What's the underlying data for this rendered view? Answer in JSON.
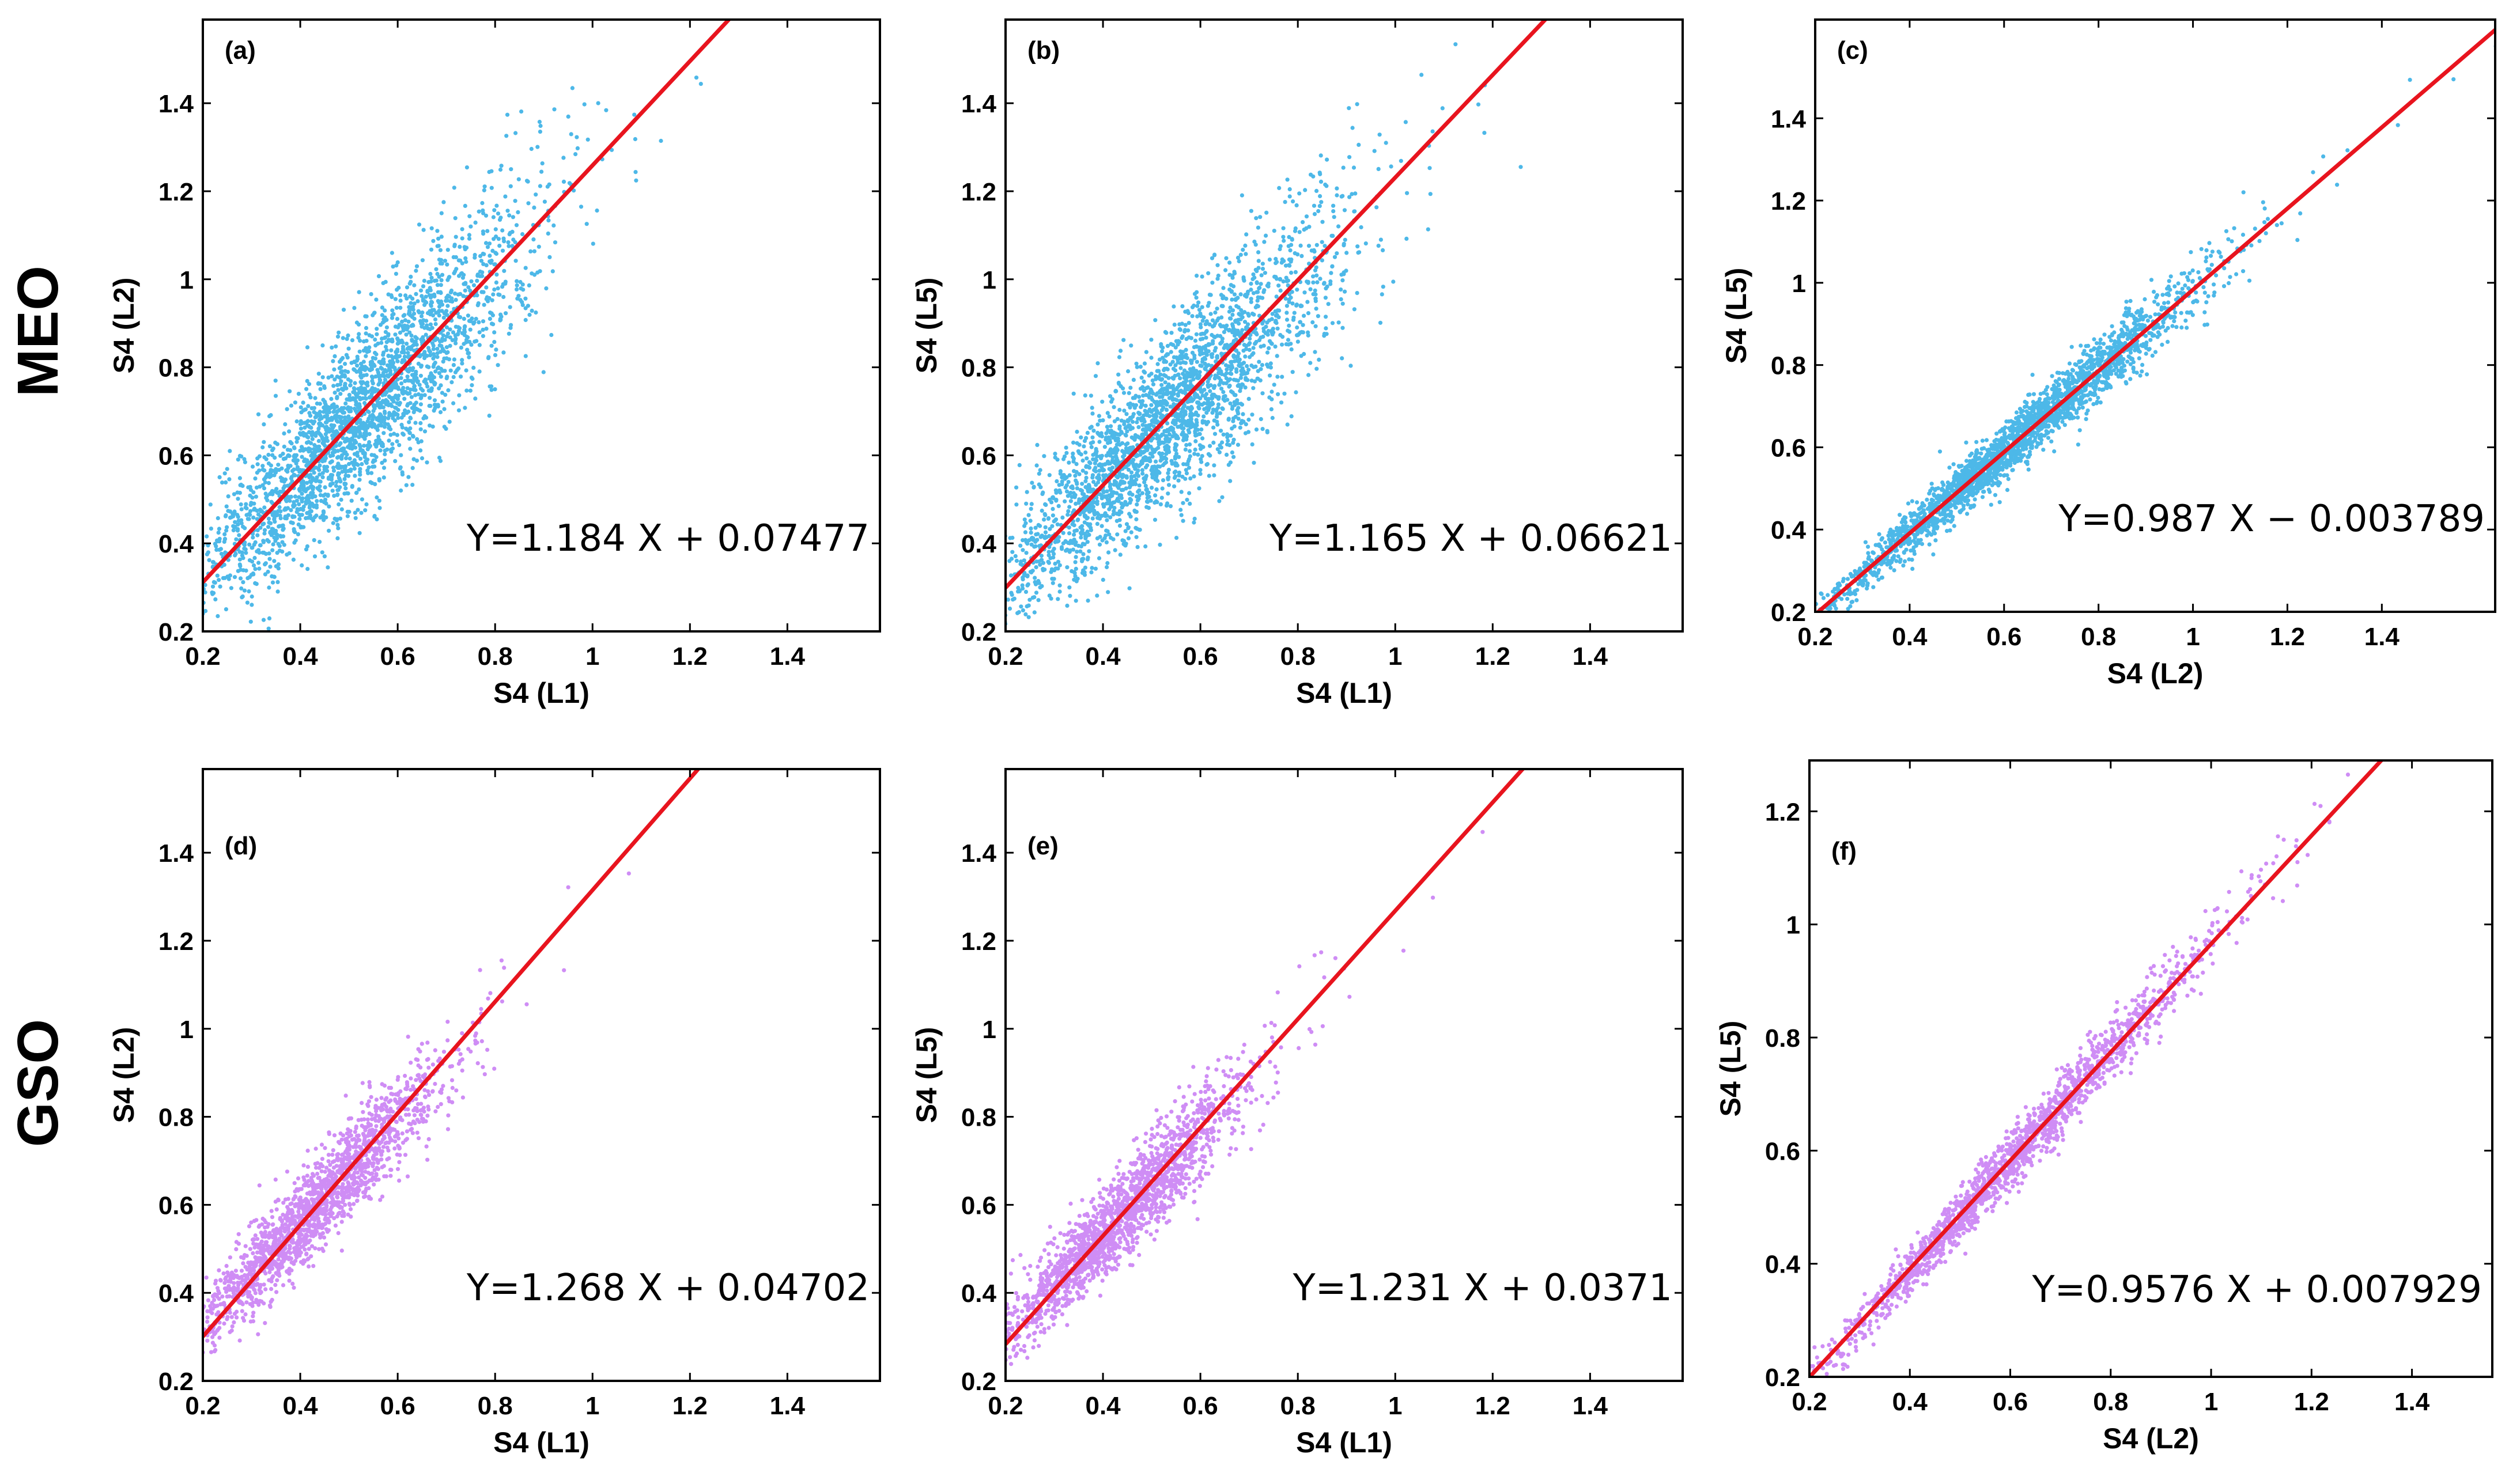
{
  "row_labels": [
    "MEO",
    "GSO"
  ],
  "colors": {
    "meo_points": "#4db8e8",
    "gso_points": "#cf8df5",
    "fit_line": "#e8141e",
    "axes": "#000000"
  },
  "chart_data": [
    {
      "panel": "(a)",
      "type": "scatter",
      "row": "MEO",
      "xlabel": "S4 (L1)",
      "ylabel": "S4 (L2)",
      "xlim": [
        0.2,
        1.59
      ],
      "ylim": [
        0.2,
        1.59
      ],
      "xticks": [
        "0.2",
        "0.4",
        "0.6",
        "0.8",
        "1",
        "1.2",
        "1.4"
      ],
      "yticks": [
        "0.2",
        "0.4",
        "0.6",
        "0.8",
        "1",
        "1.2",
        "1.4"
      ],
      "fit": {
        "slope": 1.184,
        "intercept": 0.07477
      },
      "equation": "Y=1.184 X + 0.07477",
      "point_color": "#4db8e8",
      "point_count": 2600,
      "spread": 0.11,
      "x_mean": 0.52,
      "x_sd": 0.17
    },
    {
      "panel": "(b)",
      "type": "scatter",
      "row": "MEO",
      "xlabel": "S4 (L1)",
      "ylabel": "S4 (L5)",
      "xlim": [
        0.2,
        1.59
      ],
      "ylim": [
        0.2,
        1.59
      ],
      "xticks": [
        "0.2",
        "0.4",
        "0.6",
        "0.8",
        "1",
        "1.2",
        "1.4"
      ],
      "yticks": [
        "0.2",
        "0.4",
        "0.6",
        "0.8",
        "1",
        "1.2",
        "1.4"
      ],
      "fit": {
        "slope": 1.165,
        "intercept": 0.06621
      },
      "equation": "Y=1.165 X + 0.06621",
      "point_color": "#4db8e8",
      "point_count": 2600,
      "spread": 0.11,
      "x_mean": 0.52,
      "x_sd": 0.17
    },
    {
      "panel": "(c)",
      "type": "scatter",
      "row": "MEO",
      "xlabel": "S4 (L2)",
      "ylabel": "S4 (L5)",
      "xlim": [
        0.2,
        1.64
      ],
      "ylim": [
        0.2,
        1.64
      ],
      "xticks": [
        "0.2",
        "0.4",
        "0.6",
        "0.8",
        "1",
        "1.2",
        "1.4"
      ],
      "yticks": [
        "0.2",
        "0.4",
        "0.6",
        "0.8",
        "1",
        "1.2",
        "1.4"
      ],
      "fit": {
        "slope": 0.987,
        "intercept": -0.003789
      },
      "equation": "Y=0.987 X − 0.003789",
      "point_color": "#4db8e8",
      "point_count": 2400,
      "spread": 0.035,
      "x_mean": 0.62,
      "x_sd": 0.2
    },
    {
      "panel": "(d)",
      "type": "scatter",
      "row": "GSO",
      "xlabel": "S4 (L1)",
      "ylabel": "S4 (L2)",
      "xlim": [
        0.2,
        1.59
      ],
      "ylim": [
        0.2,
        1.59
      ],
      "xticks": [
        "0.2",
        "0.4",
        "0.6",
        "0.8",
        "1",
        "1.2",
        "1.4"
      ],
      "yticks": [
        "0.2",
        "0.4",
        "0.6",
        "0.8",
        "1",
        "1.2",
        "1.4"
      ],
      "fit": {
        "slope": 1.268,
        "intercept": 0.04702
      },
      "equation": "Y=1.268 X + 0.04702",
      "point_color": "#cf8df5",
      "point_count": 1800,
      "spread": 0.06,
      "x_mean": 0.43,
      "x_sd": 0.13
    },
    {
      "panel": "(e)",
      "type": "scatter",
      "row": "GSO",
      "xlabel": "S4 (L1)",
      "ylabel": "S4 (L5)",
      "xlim": [
        0.2,
        1.59
      ],
      "ylim": [
        0.2,
        1.59
      ],
      "xticks": [
        "0.2",
        "0.4",
        "0.6",
        "0.8",
        "1",
        "1.2",
        "1.4"
      ],
      "yticks": [
        "0.2",
        "0.4",
        "0.6",
        "0.8",
        "1",
        "1.2",
        "1.4"
      ],
      "fit": {
        "slope": 1.231,
        "intercept": 0.0371
      },
      "equation": "Y=1.231 X + 0.0371",
      "point_color": "#cf8df5",
      "point_count": 1800,
      "spread": 0.06,
      "x_mean": 0.43,
      "x_sd": 0.13
    },
    {
      "panel": "(f)",
      "type": "scatter",
      "row": "GSO",
      "xlabel": "S4 (L2)",
      "ylabel": "S4 (L5)",
      "xlim": [
        0.2,
        1.56
      ],
      "ylim": [
        0.2,
        1.29
      ],
      "xticks": [
        "0.2",
        "0.4",
        "0.6",
        "0.8",
        "1",
        "1.2",
        "1.4"
      ],
      "yticks": [
        "0.2",
        "0.4",
        "0.6",
        "0.8",
        "1",
        "1.2"
      ],
      "fit": {
        "slope": 0.9576,
        "intercept": 0.007929
      },
      "equation": "Y=0.9576 X + 0.007929",
      "point_color": "#cf8df5",
      "point_count": 1800,
      "spread": 0.025,
      "x_mean": 0.6,
      "x_sd": 0.2
    }
  ]
}
